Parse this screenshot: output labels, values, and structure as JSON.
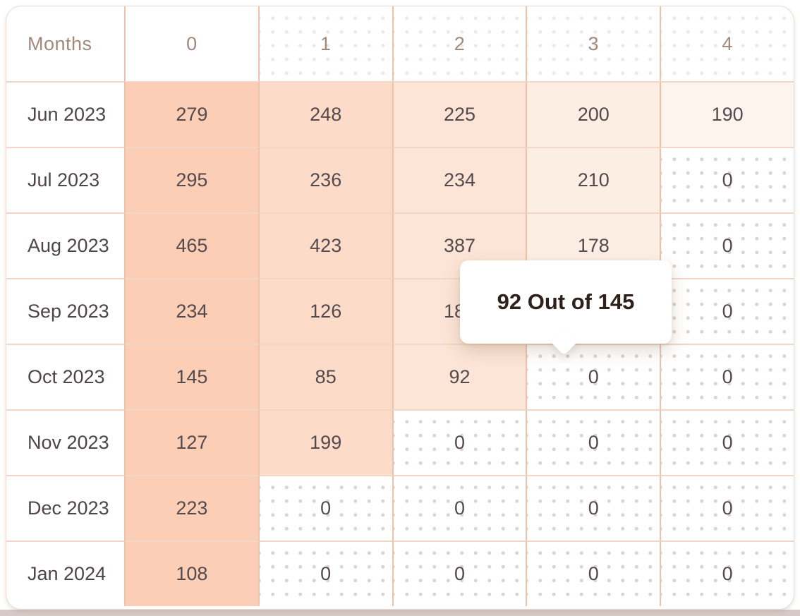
{
  "table": {
    "header": {
      "label": "Months",
      "columns": [
        "0",
        "1",
        "2",
        "3",
        "4"
      ]
    },
    "rows": [
      {
        "label": "Jun 2023",
        "cells": [
          {
            "v": "279",
            "s": "p0"
          },
          {
            "v": "248",
            "s": "p1"
          },
          {
            "v": "225",
            "s": "p2"
          },
          {
            "v": "200",
            "s": "p3"
          },
          {
            "v": "190",
            "s": "p4"
          }
        ]
      },
      {
        "label": "Jul 2023",
        "cells": [
          {
            "v": "295",
            "s": "p0"
          },
          {
            "v": "236",
            "s": "p1"
          },
          {
            "v": "234",
            "s": "p2"
          },
          {
            "v": "210",
            "s": "p3"
          },
          {
            "v": "0",
            "s": "dot"
          }
        ]
      },
      {
        "label": "Aug 2023",
        "cells": [
          {
            "v": "465",
            "s": "p0"
          },
          {
            "v": "423",
            "s": "p1"
          },
          {
            "v": "387",
            "s": "p2"
          },
          {
            "v": "178",
            "s": "p3"
          },
          {
            "v": "0",
            "s": "dot"
          }
        ]
      },
      {
        "label": "Sep 2023",
        "cells": [
          {
            "v": "234",
            "s": "p0"
          },
          {
            "v": "126",
            "s": "p1"
          },
          {
            "v": "187",
            "s": "p2"
          },
          {
            "v": "",
            "s": "plain"
          },
          {
            "v": "0",
            "s": "dot"
          }
        ]
      },
      {
        "label": "Oct 2023",
        "cells": [
          {
            "v": "145",
            "s": "p0"
          },
          {
            "v": "85",
            "s": "p1"
          },
          {
            "v": "92",
            "s": "p2"
          },
          {
            "v": "0",
            "s": "dot"
          },
          {
            "v": "0",
            "s": "dot"
          }
        ]
      },
      {
        "label": "Nov 2023",
        "cells": [
          {
            "v": "127",
            "s": "p0"
          },
          {
            "v": "199",
            "s": "p1"
          },
          {
            "v": "0",
            "s": "dot"
          },
          {
            "v": "0",
            "s": "dot"
          },
          {
            "v": "0",
            "s": "dot"
          }
        ]
      },
      {
        "label": "Dec 2023",
        "cells": [
          {
            "v": "223",
            "s": "p0"
          },
          {
            "v": "0",
            "s": "dot"
          },
          {
            "v": "0",
            "s": "dot"
          },
          {
            "v": "0",
            "s": "dot"
          },
          {
            "v": "0",
            "s": "dot"
          }
        ]
      },
      {
        "label": "Jan 2024",
        "cells": [
          {
            "v": "108",
            "s": "p0"
          },
          {
            "v": "0",
            "s": "dot"
          },
          {
            "v": "0",
            "s": "dot"
          },
          {
            "v": "0",
            "s": "dot"
          },
          {
            "v": "0",
            "s": "dot"
          }
        ]
      }
    ]
  },
  "tooltip": {
    "text": "92 Out of 145"
  },
  "colors": {
    "heat_scale": [
      "#fbceb5",
      "#fcdcc8",
      "#fce5d6",
      "#fdeee4",
      "#fdf4ee"
    ],
    "header_text": "#a2897b",
    "cell_text": "#544a4e",
    "tooltip_text": "#2e211b",
    "grid_line_h": "#f3d6c5",
    "grid_line_v": "#ebc3ad",
    "dot_empty": "#ddd3cf",
    "dot_header": "#f2e7e1"
  },
  "chart_data": {
    "type": "heatmap",
    "corner_label": "Months",
    "columns": [
      "0",
      "1",
      "2",
      "3",
      "4"
    ],
    "rows": [
      "Jun 2023",
      "Jul 2023",
      "Aug 2023",
      "Sep 2023",
      "Oct 2023",
      "Nov 2023",
      "Dec 2023",
      "Jan 2024"
    ],
    "values": [
      [
        279,
        248,
        225,
        200,
        190
      ],
      [
        295,
        236,
        234,
        210,
        0
      ],
      [
        465,
        423,
        387,
        178,
        0
      ],
      [
        234,
        126,
        187,
        null,
        0
      ],
      [
        145,
        85,
        92,
        0,
        0
      ],
      [
        127,
        199,
        0,
        0,
        0
      ],
      [
        223,
        0,
        0,
        0,
        0
      ],
      [
        108,
        0,
        0,
        0,
        0
      ]
    ],
    "legend_position": "none",
    "tooltip": {
      "text": "92 Out of 145",
      "value": 92,
      "total": 145
    }
  }
}
